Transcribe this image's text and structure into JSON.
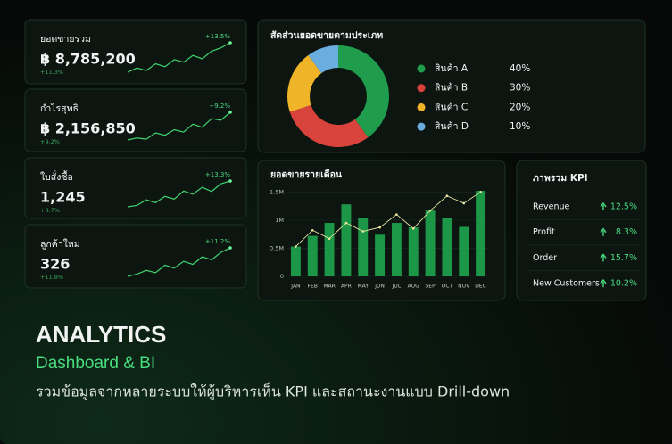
{
  "kpi_cards": [
    {
      "title": "ยอดขายรวม",
      "value": "฿ 8,785,200",
      "change": "+13.5%",
      "change_sub": "+11.3%",
      "trend": [
        2,
        3,
        2.4,
        4,
        3.3,
        5,
        4.4,
        6,
        5.2,
        7,
        7.8,
        9
      ]
    },
    {
      "title": "กำไรสุทธิ",
      "value": "฿ 2,156,850",
      "change": "+9.2%",
      "change_sub": "+9.2%",
      "trend": [
        1,
        1.5,
        1.2,
        2.8,
        2.2,
        3.6,
        3,
        5,
        4.2,
        6.4,
        6,
        8
      ]
    },
    {
      "title": "ใบสั่งซื้อ",
      "value": "1,245",
      "change": "+13.3%",
      "change_sub": "+8.7%",
      "trend": [
        1,
        1.4,
        3,
        2.2,
        4,
        3.2,
        5.5,
        4.6,
        6.6,
        5.4,
        7.6,
        8.4
      ]
    },
    {
      "title": "ลูกค้าใหม่",
      "value": "326",
      "change": "+11.2%",
      "change_sub": "+11.8%",
      "trend": [
        0.6,
        1.2,
        2.2,
        1.6,
        3.6,
        2.8,
        4.6,
        3.8,
        5.8,
        5,
        7,
        8.2
      ]
    }
  ],
  "chart_data": [
    {
      "type": "pie",
      "title": "สัดส่วนยอดขายตามประเภท",
      "categories": [
        "สินค้า A",
        "สินค้า B",
        "สินค้า C",
        "สินค้า D"
      ],
      "values": [
        40,
        30,
        20,
        10
      ],
      "value_labels": [
        "40%",
        "30%",
        "20%",
        "10%"
      ],
      "colors": [
        "#1f9d4c",
        "#d8433b",
        "#f0b429",
        "#6aaee0"
      ]
    },
    {
      "type": "bar",
      "title": "ยอดขายรายเดือน",
      "categories": [
        "JAN",
        "FEB",
        "MAR",
        "APR",
        "MAY",
        "JUN",
        "JUL",
        "AUG",
        "SEP",
        "OCT",
        "NOV",
        "DEC"
      ],
      "series": [
        {
          "type": "bar",
          "color": "#1fa84f",
          "values": [
            530000,
            720000,
            950000,
            1280000,
            1030000,
            740000,
            950000,
            870000,
            1170000,
            1030000,
            880000,
            1520000
          ]
        },
        {
          "type": "line",
          "color": "#e8e6a0",
          "values": [
            530000,
            820000,
            670000,
            950000,
            800000,
            870000,
            1100000,
            850000,
            1170000,
            1430000,
            1300000,
            1500000
          ]
        }
      ],
      "ylim": [
        0,
        1600000
      ],
      "yticks": [
        0,
        {
          "value": 500000,
          "label": "0.5M"
        },
        {
          "value": 1000000,
          "label": "1M"
        },
        {
          "value": 1500000,
          "label": "1.5M"
        }
      ]
    }
  ],
  "kpi_table": {
    "title": "ภาพรวม KPI",
    "rows": [
      [
        "Revenue",
        "12.5%"
      ],
      [
        "Profit",
        "8.3%"
      ],
      [
        "Order",
        "15.7%"
      ],
      [
        "New Customers",
        "10.2%"
      ]
    ]
  },
  "footer": {
    "title": "ANALYTICS",
    "subtitle": "Dashboard & BI",
    "description": "รวมข้อมูลจากหลายระบบให้ผู้บริหารเห็น KPI และสถานะงานแบบ Drill-down"
  }
}
